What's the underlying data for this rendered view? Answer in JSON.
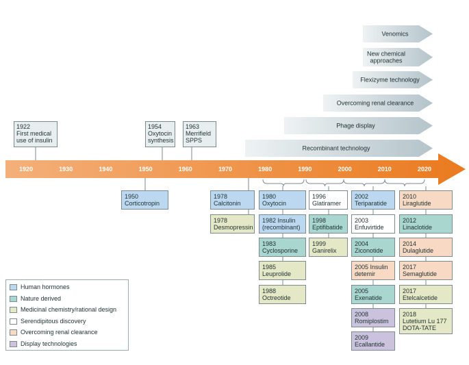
{
  "timeline": {
    "decades": [
      "1920",
      "1930",
      "1940",
      "1950",
      "1960",
      "1970",
      "1980",
      "1990",
      "2000",
      "2010",
      "2020"
    ],
    "technologies": [
      "Venomics",
      "New chemical approaches",
      "Flexizyme technology",
      "Overcoming renal clearance",
      "Phage display",
      "Recombinant technology"
    ],
    "milestones_above": [
      {
        "lines": [
          "1922",
          "First medical",
          "use of insulin"
        ]
      },
      {
        "lines": [
          "1954",
          "Oxytocin",
          "synthesis"
        ]
      },
      {
        "lines": [
          "1963",
          "Merrifield",
          "SPPS"
        ]
      }
    ],
    "milestones_below": [
      [
        {
          "lines": [
            "1950",
            "Corticotropin"
          ],
          "color": "#bcd8f0"
        }
      ],
      [
        {
          "lines": [
            "1978",
            "Calcitonin"
          ],
          "color": "#bcd8f0"
        },
        {
          "lines": [
            "1978",
            "Desmopressin"
          ],
          "color": "#e4e8c6"
        }
      ],
      [
        {
          "lines": [
            "1980",
            "Oxytocin"
          ],
          "color": "#bcd8f0"
        },
        {
          "lines": [
            "1982 Insulin",
            "(recombinant)"
          ],
          "color": "#bcd8f0"
        },
        {
          "lines": [
            "1983",
            "Cyclosporine"
          ],
          "color": "#a9d6cf"
        },
        {
          "lines": [
            "1985",
            "Leuprolide"
          ],
          "color": "#e4e8c6"
        },
        {
          "lines": [
            "1988",
            "Octreotide"
          ],
          "color": "#e4e8c6"
        }
      ],
      [
        {
          "lines": [
            "1996",
            "Glatiramer"
          ],
          "color": "#ffffff"
        },
        {
          "lines": [
            "1998",
            "Eptifibatide"
          ],
          "color": "#a9d6cf"
        },
        {
          "lines": [
            "1999",
            "Ganirelix"
          ],
          "color": "#e4e8c6"
        }
      ],
      [
        {
          "lines": [
            "2002",
            "Teriparatide"
          ],
          "color": "#bcd8f0"
        },
        {
          "lines": [
            "2003",
            "Enfuvirtide"
          ],
          "color": "#ffffff"
        },
        {
          "lines": [
            "2004",
            "Ziconotide"
          ],
          "color": "#a9d6cf"
        },
        {
          "lines": [
            "2005 Insulin",
            "detemir"
          ],
          "color": "#f8dac4"
        },
        {
          "lines": [
            "2005",
            "Exenatide"
          ],
          "color": "#a9d6cf"
        },
        {
          "lines": [
            "2008",
            "Romiplostim"
          ],
          "color": "#cbc3dd"
        },
        {
          "lines": [
            "2009",
            "Ecallantide"
          ],
          "color": "#cbc3dd"
        }
      ],
      [
        {
          "lines": [
            "2010",
            "Liraglutide"
          ],
          "color": "#f8dac4"
        },
        {
          "lines": [
            "2012",
            "Linaclotide"
          ],
          "color": "#a9d6cf"
        },
        {
          "lines": [
            "2014",
            "Dulaglutide"
          ],
          "color": "#f8dac4"
        },
        {
          "lines": [
            "2017",
            "Semaglutide"
          ],
          "color": "#f8dac4"
        },
        {
          "lines": [
            "2017",
            "Etelcalcetide"
          ],
          "color": "#e4e8c6"
        },
        {
          "lines": [
            "2018",
            "Lutetium Lu 177",
            "DOTA-TATE"
          ],
          "color": "#e4e8c6"
        }
      ]
    ],
    "legend": [
      {
        "label": "Human hormones",
        "color": "#bcd8f0"
      },
      {
        "label": "Nature derived",
        "color": "#a9d6cf"
      },
      {
        "label": "Medicinal chemistry/rational design",
        "color": "#e4e8c6"
      },
      {
        "label": "Serendipitous discovery",
        "color": "#ffffff"
      },
      {
        "label": "Overcoming renal clearance",
        "color": "#f8dac4"
      },
      {
        "label": "Display technologies",
        "color": "#cbc3dd"
      }
    ]
  }
}
